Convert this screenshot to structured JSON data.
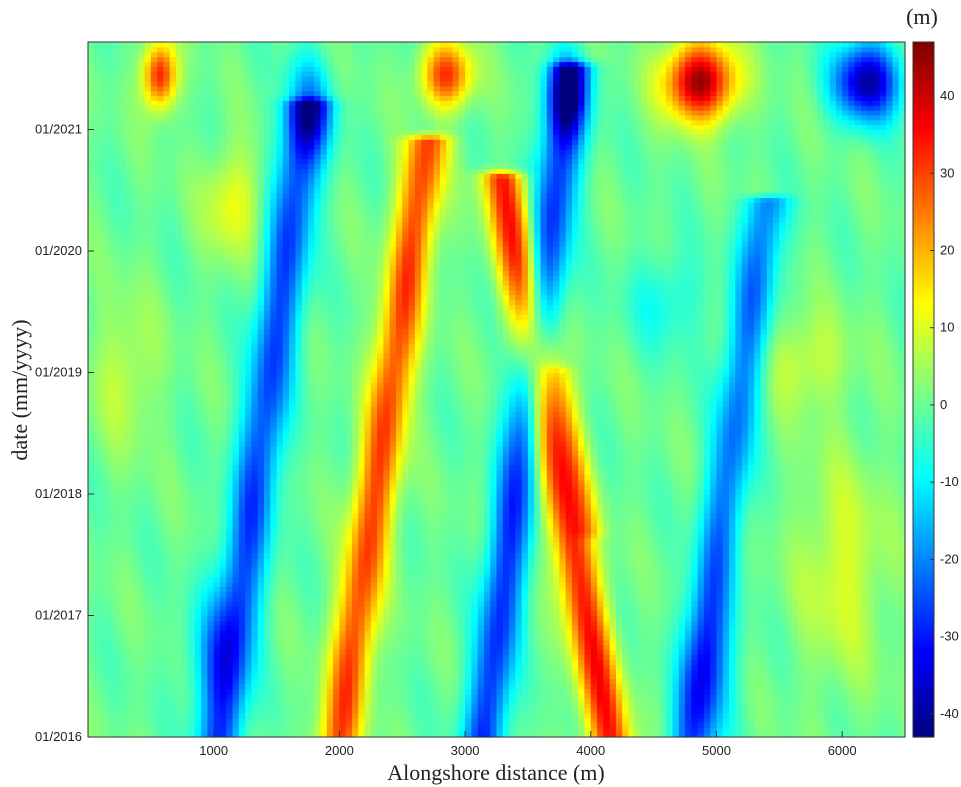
{
  "chart_data": {
    "type": "heatmap",
    "title": "",
    "xlabel": "Alongshore distance (m)",
    "ylabel": "date (mm/yyyy)",
    "colorbar_label": "(m)",
    "colormap": "jet",
    "xlim": [
      0,
      6500
    ],
    "ylim": [
      "01/2016",
      "09/2021"
    ],
    "clim": [
      -43,
      47
    ],
    "x_ticks": [
      {
        "value": 1000,
        "label": "1000"
      },
      {
        "value": 2000,
        "label": "2000"
      },
      {
        "value": 3000,
        "label": "3000"
      },
      {
        "value": 4000,
        "label": "4000"
      },
      {
        "value": 5000,
        "label": "5000"
      },
      {
        "value": 6000,
        "label": "6000"
      }
    ],
    "y_ticks": [
      {
        "value": 2016,
        "label": "01/2016"
      },
      {
        "value": 2017,
        "label": "01/2017"
      },
      {
        "value": 2018,
        "label": "01/2018"
      },
      {
        "value": 2019,
        "label": "01/2019"
      },
      {
        "value": 2020,
        "label": "01/2020"
      },
      {
        "value": 2021,
        "label": "01/2021"
      }
    ],
    "colorbar_ticks": [
      {
        "value": 40,
        "label": "40"
      },
      {
        "value": 30,
        "label": "30"
      },
      {
        "value": 20,
        "label": "20"
      },
      {
        "value": 10,
        "label": "10"
      },
      {
        "value": 0,
        "label": "0"
      },
      {
        "value": -10,
        "label": "-10"
      },
      {
        "value": -20,
        "label": "-20"
      },
      {
        "value": -30,
        "label": "-30"
      },
      {
        "value": -40,
        "label": "-40"
      }
    ],
    "features": [
      {
        "note": "migrating accretion band",
        "x_start": 2000,
        "x_end": 2700,
        "t_start": 2016.0,
        "t_end": 2020.9,
        "peak": 32
      },
      {
        "note": "migrating accretion band",
        "x_start": 4150,
        "x_end": 3300,
        "t_start": 2016.0,
        "t_end": 2020.6,
        "peak": 38
      },
      {
        "note": "erosion band",
        "x_start": 1050,
        "x_end": 1750,
        "t_start": 2016.0,
        "t_end": 2021.2,
        "peak": -28
      },
      {
        "note": "erosion band",
        "x_start": 3200,
        "x_end": 3850,
        "t_start": 2016.0,
        "t_end": 2021.5,
        "peak": -32
      },
      {
        "note": "accretion patch",
        "x_center": 570,
        "t_start": 2021.1,
        "t_end": 2021.7,
        "peak": 35
      },
      {
        "note": "accretion patch",
        "x_center": 2850,
        "t_start": 2021.1,
        "t_end": 2021.7,
        "peak": 32
      },
      {
        "note": "accretion patch",
        "x_center": 4870,
        "t_start": 2021.05,
        "t_end": 2021.7,
        "peak": 45
      },
      {
        "note": "erosion patch",
        "x_center": 6200,
        "t_start": 2021.0,
        "t_end": 2021.7,
        "peak": -40
      }
    ]
  }
}
